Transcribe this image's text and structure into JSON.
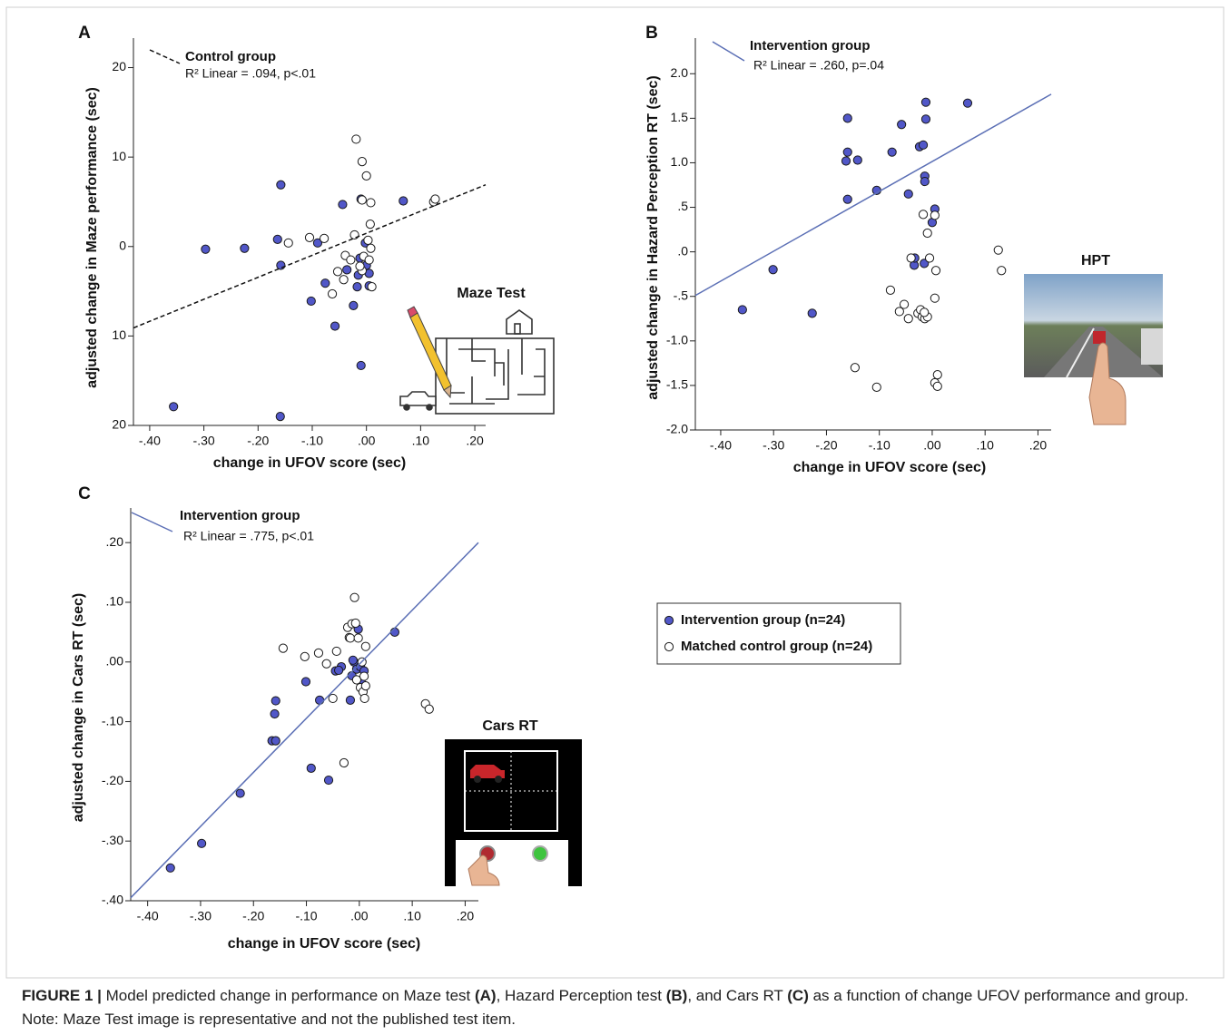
{
  "chart_data": [
    {
      "type": "scatter",
      "panel_label": "A",
      "x_label": "change in UFOV score (sec)",
      "y_label": "adjusted change in Maze performance (sec)",
      "inset_title": "Maze Test",
      "xlim": [
        -0.43,
        0.22
      ],
      "ylim": [
        -20,
        23.3
      ],
      "xticks": [
        {
          "value": -0.4,
          "label": "-.40"
        },
        {
          "value": -0.3,
          "label": "-.30"
        },
        {
          "value": -0.2,
          "label": "-.20"
        },
        {
          "value": -0.1,
          "label": "-.10"
        },
        {
          "value": 0,
          "label": ".00"
        },
        {
          "value": 0.1,
          "label": ".10"
        },
        {
          "value": 0.2,
          "label": ".20"
        }
      ],
      "yticks": [
        20,
        10,
        0,
        {
          "value": -10,
          "label": "10"
        },
        {
          "value": -20,
          "label": "20"
        }
      ],
      "fit": {
        "name": "Control group",
        "stat": "R² Linear = .094, p<.01",
        "color": "#111111",
        "dashed": true,
        "x": [
          -0.43,
          0.22
        ],
        "y": [
          -9.1,
          6.9
        ]
      },
      "series": [
        {
          "fill": "#5157c8",
          "x": [
            -0.297,
            -0.225,
            -0.164,
            -0.158,
            -0.158,
            -0.159,
            -0.356,
            -0.102,
            -0.09,
            -0.076,
            -0.058,
            -0.044,
            -0.036,
            -0.024,
            -0.012,
            -0.01,
            -0.015,
            -0.017,
            -0.01,
            -0.002,
            0.0,
            0.005,
            0.005,
            0.068
          ],
          "values": [
            -0.3,
            -0.2,
            0.8,
            6.9,
            -2.1,
            -19.0,
            -17.9,
            -6.1,
            0.4,
            -4.1,
            -8.9,
            4.7,
            -2.6,
            -6.6,
            -1.3,
            5.3,
            -3.2,
            -4.5,
            -13.3,
            0.4,
            -2.1,
            -3.0,
            -4.4,
            5.1
          ]
        },
        {
          "fill": "#ffffff",
          "x": [
            -0.144,
            -0.105,
            -0.078,
            -0.063,
            -0.053,
            -0.042,
            -0.039,
            -0.029,
            -0.022,
            -0.019,
            -0.008,
            -0.008,
            0.0,
            0.003,
            0.007,
            0.008,
            0.01,
            0.008,
            -0.008,
            -0.005,
            0.124,
            0.127,
            0.005,
            -0.012
          ],
          "values": [
            0.4,
            1.0,
            0.9,
            -5.3,
            -2.8,
            -3.7,
            -1.0,
            -1.5,
            1.3,
            12.0,
            9.5,
            5.2,
            7.9,
            0.7,
            2.5,
            -0.2,
            -4.5,
            4.9,
            -2.7,
            -1.1,
            5.0,
            5.3,
            -1.5,
            -2.2
          ]
        }
      ]
    },
    {
      "type": "scatter",
      "panel_label": "B",
      "x_label": "change in UFOV score (sec)",
      "y_label": "adjusted change in Hazard Perception RT (sec)",
      "inset_title": "HPT",
      "xlim": [
        -0.448,
        0.225
      ],
      "ylim": [
        -2.0,
        2.4
      ],
      "xticks": [
        {
          "value": -0.4,
          "label": "-.40"
        },
        {
          "value": -0.3,
          "label": "-.30"
        },
        {
          "value": -0.2,
          "label": "-.20"
        },
        {
          "value": -0.1,
          "label": "-.10"
        },
        {
          "value": 0,
          "label": ".00"
        },
        {
          "value": 0.1,
          "label": ".10"
        },
        {
          "value": 0.2,
          "label": ".20"
        }
      ],
      "yticks": [
        {
          "value": 2.0,
          "label": "2.0"
        },
        {
          "value": 1.5,
          "label": "1.5"
        },
        {
          "value": 1.0,
          "label": "1.0"
        },
        {
          "value": 0.5,
          "label": ".5"
        },
        {
          "value": 0,
          "label": ".0"
        },
        {
          "value": -0.5,
          "label": "-.5"
        },
        {
          "value": -1.0,
          "label": "-1.0"
        },
        {
          "value": -1.5,
          "label": "-1.5"
        },
        {
          "value": -2.0,
          "label": "-2.0"
        }
      ],
      "fit": {
        "name": "Intervention group",
        "stat": "R² Linear = .260, p=.04",
        "color": "#5b6fb5",
        "dashed": false,
        "x": [
          -0.448,
          0.225
        ],
        "y": [
          -0.49,
          1.77
        ]
      },
      "series": [
        {
          "fill": "#5157c8",
          "x": [
            -0.16,
            -0.16,
            -0.163,
            -0.16,
            -0.359,
            -0.301,
            -0.227,
            -0.141,
            -0.105,
            -0.076,
            -0.058,
            -0.045,
            -0.034,
            -0.024,
            -0.017,
            -0.014,
            -0.014,
            -0.012,
            -0.012,
            -0.015,
            0.005,
            0.0,
            0.067,
            -0.033
          ],
          "values": [
            1.5,
            1.12,
            1.02,
            0.59,
            -0.65,
            -0.2,
            -0.69,
            1.03,
            0.69,
            1.12,
            1.43,
            0.65,
            -0.15,
            1.18,
            1.2,
            0.85,
            0.79,
            1.68,
            1.49,
            -0.13,
            0.48,
            0.33,
            1.67,
            -0.07
          ]
        },
        {
          "fill": "#ffffff",
          "x": [
            -0.146,
            -0.105,
            -0.079,
            -0.062,
            -0.053,
            -0.045,
            -0.04,
            -0.027,
            -0.022,
            -0.019,
            -0.014,
            -0.009,
            -0.017,
            -0.009,
            -0.005,
            0.005,
            0.007,
            0.005,
            0.005,
            0.01,
            0.01,
            0.125,
            0.131,
            -0.015
          ],
          "values": [
            -1.3,
            -1.52,
            -0.43,
            -0.67,
            -0.59,
            -0.75,
            -0.07,
            -0.69,
            -0.65,
            -0.73,
            -0.75,
            -0.73,
            0.42,
            0.21,
            -0.07,
            0.41,
            -0.21,
            -0.52,
            -1.47,
            -1.38,
            -1.51,
            0.02,
            -0.21,
            -0.68
          ]
        }
      ]
    },
    {
      "type": "scatter",
      "panel_label": "C",
      "x_label": "change in UFOV score (sec)",
      "y_label": "adjusted change in Cars RT (sec)",
      "inset_title": "Cars RT",
      "xlim": [
        -0.432,
        0.225
      ],
      "ylim": [
        -0.4,
        0.258
      ],
      "xticks": [
        {
          "value": -0.4,
          "label": "-.40"
        },
        {
          "value": -0.3,
          "label": "-.30"
        },
        {
          "value": -0.2,
          "label": "-.20"
        },
        {
          "value": -0.1,
          "label": "-.10"
        },
        {
          "value": 0,
          "label": ".00"
        },
        {
          "value": 0.1,
          "label": ".10"
        },
        {
          "value": 0.2,
          "label": ".20"
        }
      ],
      "yticks": [
        {
          "value": 0.2,
          "label": ".20"
        },
        {
          "value": 0.1,
          "label": ".10"
        },
        {
          "value": 0,
          "label": ".00"
        },
        {
          "value": -0.1,
          "label": "-.10"
        },
        {
          "value": -0.2,
          "label": "-.20"
        },
        {
          "value": -0.3,
          "label": "-.30"
        },
        {
          "value": -0.4,
          "label": "-.40"
        }
      ],
      "fit": {
        "name": "Intervention group",
        "stat": "R² Linear = .775, p<.01",
        "color": "#5b6fb5",
        "dashed": false,
        "x": [
          -0.432,
          0.225
        ],
        "y": [
          -0.395,
          0.2
        ]
      },
      "series": [
        {
          "name": "Intervention group (n=24)",
          "fill": "#5157c8",
          "x": [
            -0.357,
            -0.298,
            -0.225,
            -0.165,
            -0.158,
            -0.16,
            -0.158,
            -0.101,
            -0.091,
            -0.075,
            -0.058,
            -0.045,
            -0.034,
            -0.017,
            -0.014,
            -0.01,
            -0.005,
            -0.002,
            0.002,
            0.005,
            0.009,
            0.067,
            -0.039,
            -0.012
          ],
          "values": [
            -0.345,
            -0.304,
            -0.22,
            -0.132,
            -0.132,
            -0.087,
            -0.065,
            -0.033,
            -0.178,
            -0.064,
            -0.198,
            -0.015,
            -0.008,
            -0.064,
            -0.023,
            0.0,
            -0.012,
            0.055,
            -0.008,
            -0.036,
            -0.015,
            0.05,
            -0.014,
            0.003
          ]
        },
        {
          "name": "Matched control group (n=24)",
          "fill": "#ffffff",
          "x": [
            -0.144,
            -0.103,
            -0.077,
            -0.062,
            -0.05,
            -0.043,
            -0.029,
            -0.022,
            -0.019,
            -0.017,
            -0.014,
            -0.009,
            -0.007,
            -0.005,
            -0.002,
            0.002,
            0.005,
            0.007,
            0.009,
            0.01,
            0.012,
            0.012,
            0.125,
            0.132
          ],
          "values": [
            0.023,
            0.009,
            0.015,
            -0.003,
            -0.061,
            0.018,
            -0.169,
            0.058,
            0.041,
            0.04,
            0.064,
            0.108,
            0.065,
            -0.03,
            0.04,
            -0.043,
            0.0,
            -0.05,
            -0.024,
            -0.061,
            0.026,
            -0.04,
            -0.07,
            -0.079
          ]
        }
      ]
    }
  ],
  "caption": [
    {
      "text": "FIGURE 1 |",
      "bold": true
    },
    {
      "text": "Model predicted change in performance on Maze test",
      "bold": false
    },
    {
      "text": "(A)",
      "bold": true
    },
    {
      "text": ", Hazard Perception test",
      "bold": false
    },
    {
      "text": "(B)",
      "bold": true
    },
    {
      "text": ", and Cars RT",
      "bold": false
    },
    {
      "text": "(C)",
      "bold": true
    },
    {
      "text": "as a function of change UFOV performance and group. Note: Maze Test image is representative and not the published test item.",
      "bold": false
    }
  ]
}
